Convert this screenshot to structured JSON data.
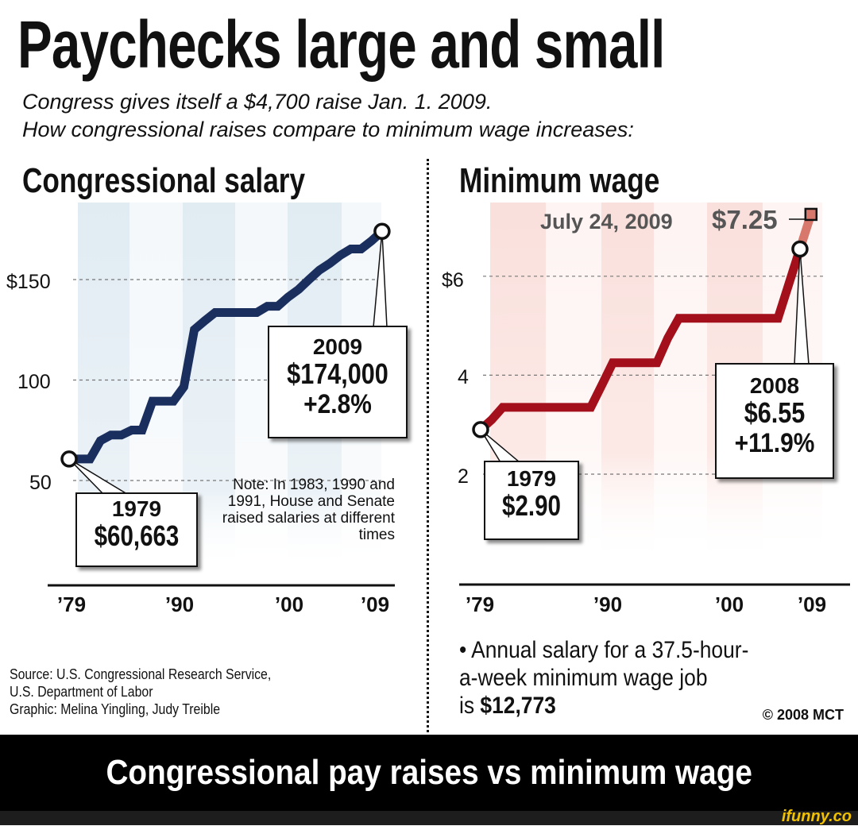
{
  "title": "Paychecks large and small",
  "subtitle_lines": [
    "Congress gives itself a $4,700 raise Jan. 1. 2009.",
    "How congressional raises compare to minimum wage increases:"
  ],
  "chart_data": [
    {
      "type": "line",
      "title": "Congressional salary",
      "ylabel": "",
      "xlabel": "",
      "x_ticks": [
        "’79",
        "’90",
        "’00",
        "’09"
      ],
      "y_ticks": [
        "50",
        "100",
        "$150"
      ],
      "y_tick_values": [
        50,
        100,
        150
      ],
      "ylim": [
        35,
        185
      ],
      "xlim": [
        1979,
        2009
      ],
      "grid": "horizontal dashed",
      "series": [
        {
          "color": "#1b2f5e",
          "x": [
            1979,
            1980,
            1981,
            1982,
            1983,
            1984,
            1985,
            1986,
            1987,
            1988,
            1989,
            1990,
            1991,
            1992,
            1993,
            1994,
            1995,
            1996,
            1997,
            1998,
            1999,
            2000,
            2001,
            2002,
            2003,
            2004,
            2005,
            2006,
            2007,
            2008,
            2009
          ],
          "y": [
            60.7,
            60.7,
            60.7,
            69.8,
            72.6,
            72.6,
            75.1,
            75.1,
            89.5,
            89.5,
            89.5,
            96.6,
            125.1,
            129.5,
            133.6,
            133.6,
            133.6,
            133.6,
            133.6,
            136.7,
            136.7,
            141.3,
            145.1,
            150.0,
            154.7,
            158.1,
            162.1,
            165.2,
            165.2,
            169.3,
            174.0
          ]
        }
      ],
      "annotations": [
        {
          "lines": [
            "1979",
            "$60,663"
          ]
        },
        {
          "lines": [
            "2009",
            "$174,000",
            "+2.8%"
          ]
        }
      ],
      "note": "Note: In 1983, 1990 and 1991, House and Senate raised salaries at different times",
      "band_color": "#dde9f1"
    },
    {
      "type": "line",
      "title": "Minimum wage",
      "ylabel": "",
      "xlabel": "",
      "x_ticks": [
        "’79",
        "’90",
        "’00",
        "’09"
      ],
      "y_ticks": [
        "2",
        "4",
        "$6"
      ],
      "y_tick_values": [
        2,
        4,
        6
      ],
      "ylim": [
        0.8,
        7.6
      ],
      "xlim": [
        1979,
        2009
      ],
      "grid": "horizontal dashed",
      "series": [
        {
          "color": "#a3101c",
          "x": [
            1979,
            1980,
            1981,
            1982,
            1983,
            1984,
            1985,
            1986,
            1987,
            1988,
            1989,
            1990,
            1991,
            1992,
            1993,
            1994,
            1995,
            1996,
            1997,
            1998,
            1999,
            2000,
            2001,
            2002,
            2003,
            2004,
            2005,
            2006,
            2007,
            2008
          ],
          "y": [
            2.9,
            3.1,
            3.35,
            3.35,
            3.35,
            3.35,
            3.35,
            3.35,
            3.35,
            3.35,
            3.35,
            3.8,
            4.25,
            4.25,
            4.25,
            4.25,
            4.25,
            4.75,
            5.15,
            5.15,
            5.15,
            5.15,
            5.15,
            5.15,
            5.15,
            5.15,
            5.15,
            5.15,
            5.85,
            6.55
          ]
        },
        {
          "color": "#d8776b",
          "x": [
            2008,
            2009
          ],
          "y": [
            6.55,
            7.25
          ]
        }
      ],
      "annotations": [
        {
          "lines": [
            "1979",
            "$2.90"
          ]
        },
        {
          "lines": [
            "2008",
            "$6.55",
            "+11.9%"
          ]
        },
        {
          "date": "July 24, 2009",
          "value": "$7.25"
        }
      ],
      "band_color": "#f9dcd8"
    }
  ],
  "source_lines": [
    "Source: U.S. Congressional Research Service,",
    "U.S. Department of Labor",
    "Graphic: Melina Yingling, Judy Treible"
  ],
  "fact_lines": [
    "• Annual salary for a 37.5-hour-",
    "a-week minimum wage job"
  ],
  "fact_prefix": "is ",
  "fact_value": "$12,773",
  "copyright": "© 2008 MCT",
  "banner": "Congressional pay raises vs minimum wage",
  "watermark": "ifunny.co",
  "colors": {
    "congress_line": "#1b2f5e",
    "wage_line": "#a3101c",
    "wage_projection": "#d8776b",
    "banner_bg": "#000000",
    "watermark": "#f2c200"
  }
}
